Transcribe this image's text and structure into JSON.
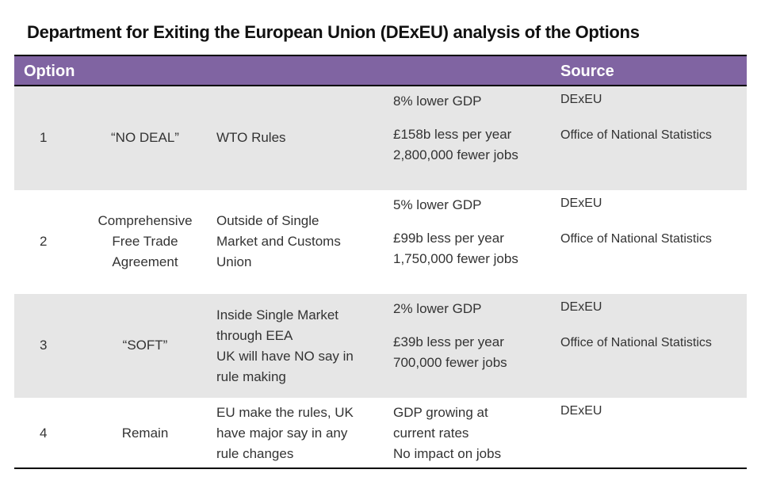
{
  "title": "Department for Exiting the European Union (DExEU) analysis of the Options",
  "table": {
    "headers": {
      "option": "Option",
      "source": "Source"
    },
    "rows": [
      {
        "number": "1",
        "name": [
          "“NO DEAL”"
        ],
        "rules": [
          "WTO Rules"
        ],
        "gdp": "8% lower GDP",
        "per_year": "£158b less per year",
        "jobs": "2,800,000 fewer jobs",
        "source_1": "DExEU",
        "source_2": "Office of National Statistics"
      },
      {
        "number": "2",
        "name": [
          "Comprehensive",
          "Free Trade",
          "Agreement"
        ],
        "rules": [
          "Outside of Single",
          "Market and Customs",
          "Union"
        ],
        "gdp": "5% lower GDP",
        "per_year": "£99b less per year",
        "jobs": "1,750,000 fewer jobs",
        "source_1": "DExEU",
        "source_2": "Office of National Statistics"
      },
      {
        "number": "3",
        "name": [
          "“SOFT”"
        ],
        "rules": [
          "Inside Single Market",
          "through EEA",
          "UK will have NO say in",
          "rule making"
        ],
        "gdp": "2% lower GDP",
        "per_year": "£39b less per year",
        "jobs": "700,000 fewer jobs",
        "source_1": "DExEU",
        "source_2": "Office of National Statistics"
      },
      {
        "number": "4",
        "name": [
          "Remain"
        ],
        "rules": [
          "EU make the rules, UK",
          "have major say in any",
          "rule changes"
        ],
        "impact": [
          "GDP growing at",
          "current rates",
          "No impact on jobs"
        ],
        "source_1": "DExEU"
      }
    ]
  }
}
